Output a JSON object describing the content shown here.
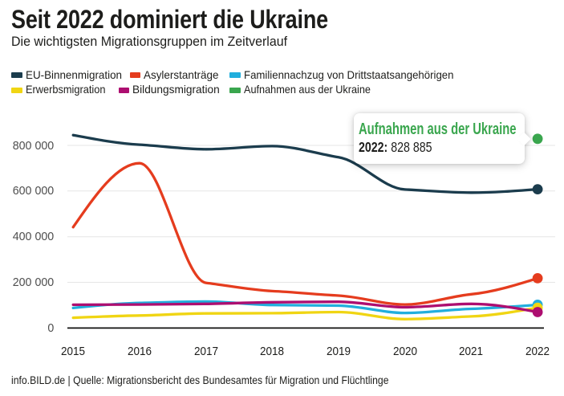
{
  "header": {
    "title": "Seit 2022 dominiert die Ukraine",
    "subtitle": "Die wichtigsten Migrationsgruppen im Zeitverlauf"
  },
  "legend": {
    "items": [
      {
        "label": "EU-Binnenmigration",
        "color": "#1b3c4d"
      },
      {
        "label": "Asylerstanträge",
        "color": "#e53c1e"
      },
      {
        "label": "Familiennachzug von Drittstaatsangehörigen",
        "color": "#21aedd"
      },
      {
        "label": "Erwerbsmigration",
        "color": "#f0d513"
      },
      {
        "label": "Bildungsmigration",
        "color": "#ad0e70"
      },
      {
        "label": "Aufnahmen aus der Ukraine",
        "color": "#3aa64e"
      }
    ]
  },
  "chart_data": {
    "type": "line",
    "categories": [
      "2015",
      "2016",
      "2017",
      "2018",
      "2019",
      "2020",
      "2021",
      "2022"
    ],
    "series": [
      {
        "name": "EU-Binnenmigration",
        "color": "#1b3c4d",
        "values": [
          845000,
          803000,
          783000,
          797000,
          748000,
          607000,
          593000,
          608000
        ]
      },
      {
        "name": "Asylerstanträge",
        "color": "#e53c1e",
        "values": [
          442000,
          722000,
          198000,
          162000,
          142000,
          103000,
          148000,
          218000
        ]
      },
      {
        "name": "Familiennachzug von Drittstaatsangehörigen",
        "color": "#21aedd",
        "values": [
          88000,
          110000,
          116000,
          101000,
          98000,
          66000,
          84000,
          102000
        ]
      },
      {
        "name": "Erwerbsmigration",
        "color": "#f0d513",
        "values": [
          45000,
          55000,
          64000,
          65000,
          70000,
          39000,
          51000,
          89000
        ]
      },
      {
        "name": "Bildungsmigration",
        "color": "#ad0e70",
        "values": [
          102000,
          103000,
          106000,
          113000,
          115000,
          91000,
          106000,
          70000
        ]
      },
      {
        "name": "Aufnahmen aus der Ukraine",
        "color": "#3aa64e",
        "values": [
          null,
          null,
          null,
          null,
          null,
          null,
          null,
          828885
        ]
      }
    ],
    "title": "Seit 2022 dominiert die Ukraine",
    "subtitle": "Die wichtigsten Migrationsgruppen im Zeitverlauf",
    "xlabel": "",
    "ylabel": "",
    "ylim": [
      0,
      870000
    ],
    "yticks": [
      {
        "value": 0,
        "label": "0"
      },
      {
        "value": 200000,
        "label": "200 000"
      },
      {
        "value": 400000,
        "label": "400 000"
      },
      {
        "value": 600000,
        "label": "600 000"
      },
      {
        "value": 800000,
        "label": "800 000"
      }
    ],
    "grid": "horizontal",
    "legend_position": "top",
    "annotation": {
      "title": "Aufnahmen aus der Ukraine",
      "title_color": "#3aa64e",
      "year_label": "2022:",
      "value_label": "828 885",
      "x": "2022",
      "y": 828885
    }
  },
  "footer": {
    "source": "info.BILD.de | Quelle: Migrationsbericht des Bundesamtes für Migration und Flüchtlinge"
  }
}
